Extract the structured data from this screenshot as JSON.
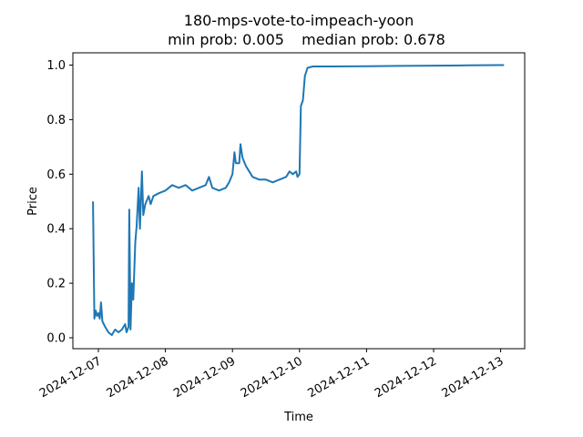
{
  "chart_data": {
    "type": "line",
    "title": "180-mps-vote-to-impeach-yoon",
    "subtitle_left": "min prob: 0.005",
    "subtitle_right": "median prob: 0.678",
    "xlabel": "Time",
    "ylabel": "Price",
    "ylim": [
      -0.04,
      1.04
    ],
    "yticks": [
      "0.0",
      "0.2",
      "0.4",
      "0.6",
      "0.8",
      "1.0"
    ],
    "xticks": [
      "2024-12-07",
      "2024-12-08",
      "2024-12-09",
      "2024-12-10",
      "2024-12-11",
      "2024-12-12",
      "2024-12-13"
    ],
    "grid": false,
    "line_color": "#1f77b4",
    "series": [
      {
        "name": "price",
        "points_day_offset_from_2024-12-07": [
          [
            -0.08,
            0.5
          ],
          [
            -0.06,
            0.07
          ],
          [
            -0.04,
            0.1
          ],
          [
            -0.02,
            0.08
          ],
          [
            0.0,
            0.09
          ],
          [
            0.02,
            0.07
          ],
          [
            0.04,
            0.13
          ],
          [
            0.06,
            0.06
          ],
          [
            0.1,
            0.04
          ],
          [
            0.15,
            0.02
          ],
          [
            0.2,
            0.01
          ],
          [
            0.25,
            0.03
          ],
          [
            0.3,
            0.02
          ],
          [
            0.35,
            0.03
          ],
          [
            0.4,
            0.05
          ],
          [
            0.42,
            0.02
          ],
          [
            0.45,
            0.04
          ],
          [
            0.46,
            0.47
          ],
          [
            0.48,
            0.03
          ],
          [
            0.5,
            0.2
          ],
          [
            0.52,
            0.14
          ],
          [
            0.55,
            0.35
          ],
          [
            0.57,
            0.41
          ],
          [
            0.6,
            0.55
          ],
          [
            0.62,
            0.4
          ],
          [
            0.65,
            0.61
          ],
          [
            0.67,
            0.45
          ],
          [
            0.7,
            0.49
          ],
          [
            0.75,
            0.52
          ],
          [
            0.78,
            0.49
          ],
          [
            0.82,
            0.52
          ],
          [
            0.9,
            0.53
          ],
          [
            1.0,
            0.54
          ],
          [
            1.1,
            0.56
          ],
          [
            1.2,
            0.55
          ],
          [
            1.3,
            0.56
          ],
          [
            1.4,
            0.54
          ],
          [
            1.5,
            0.55
          ],
          [
            1.6,
            0.56
          ],
          [
            1.65,
            0.59
          ],
          [
            1.7,
            0.55
          ],
          [
            1.8,
            0.54
          ],
          [
            1.9,
            0.55
          ],
          [
            1.95,
            0.57
          ],
          [
            2.0,
            0.6
          ],
          [
            2.03,
            0.68
          ],
          [
            2.05,
            0.64
          ],
          [
            2.1,
            0.64
          ],
          [
            2.12,
            0.71
          ],
          [
            2.15,
            0.66
          ],
          [
            2.2,
            0.63
          ],
          [
            2.3,
            0.59
          ],
          [
            2.4,
            0.58
          ],
          [
            2.5,
            0.58
          ],
          [
            2.6,
            0.57
          ],
          [
            2.7,
            0.58
          ],
          [
            2.8,
            0.59
          ],
          [
            2.85,
            0.61
          ],
          [
            2.9,
            0.6
          ],
          [
            2.95,
            0.61
          ],
          [
            2.97,
            0.59
          ],
          [
            3.0,
            0.6
          ],
          [
            3.02,
            0.85
          ],
          [
            3.05,
            0.87
          ],
          [
            3.08,
            0.96
          ],
          [
            3.12,
            0.99
          ],
          [
            3.2,
            0.995
          ],
          [
            3.5,
            0.995
          ],
          [
            4.0,
            0.996
          ],
          [
            4.5,
            0.997
          ],
          [
            5.0,
            0.998
          ],
          [
            5.5,
            0.999
          ],
          [
            6.0,
            1.0
          ],
          [
            6.05,
            1.0
          ]
        ]
      }
    ]
  }
}
